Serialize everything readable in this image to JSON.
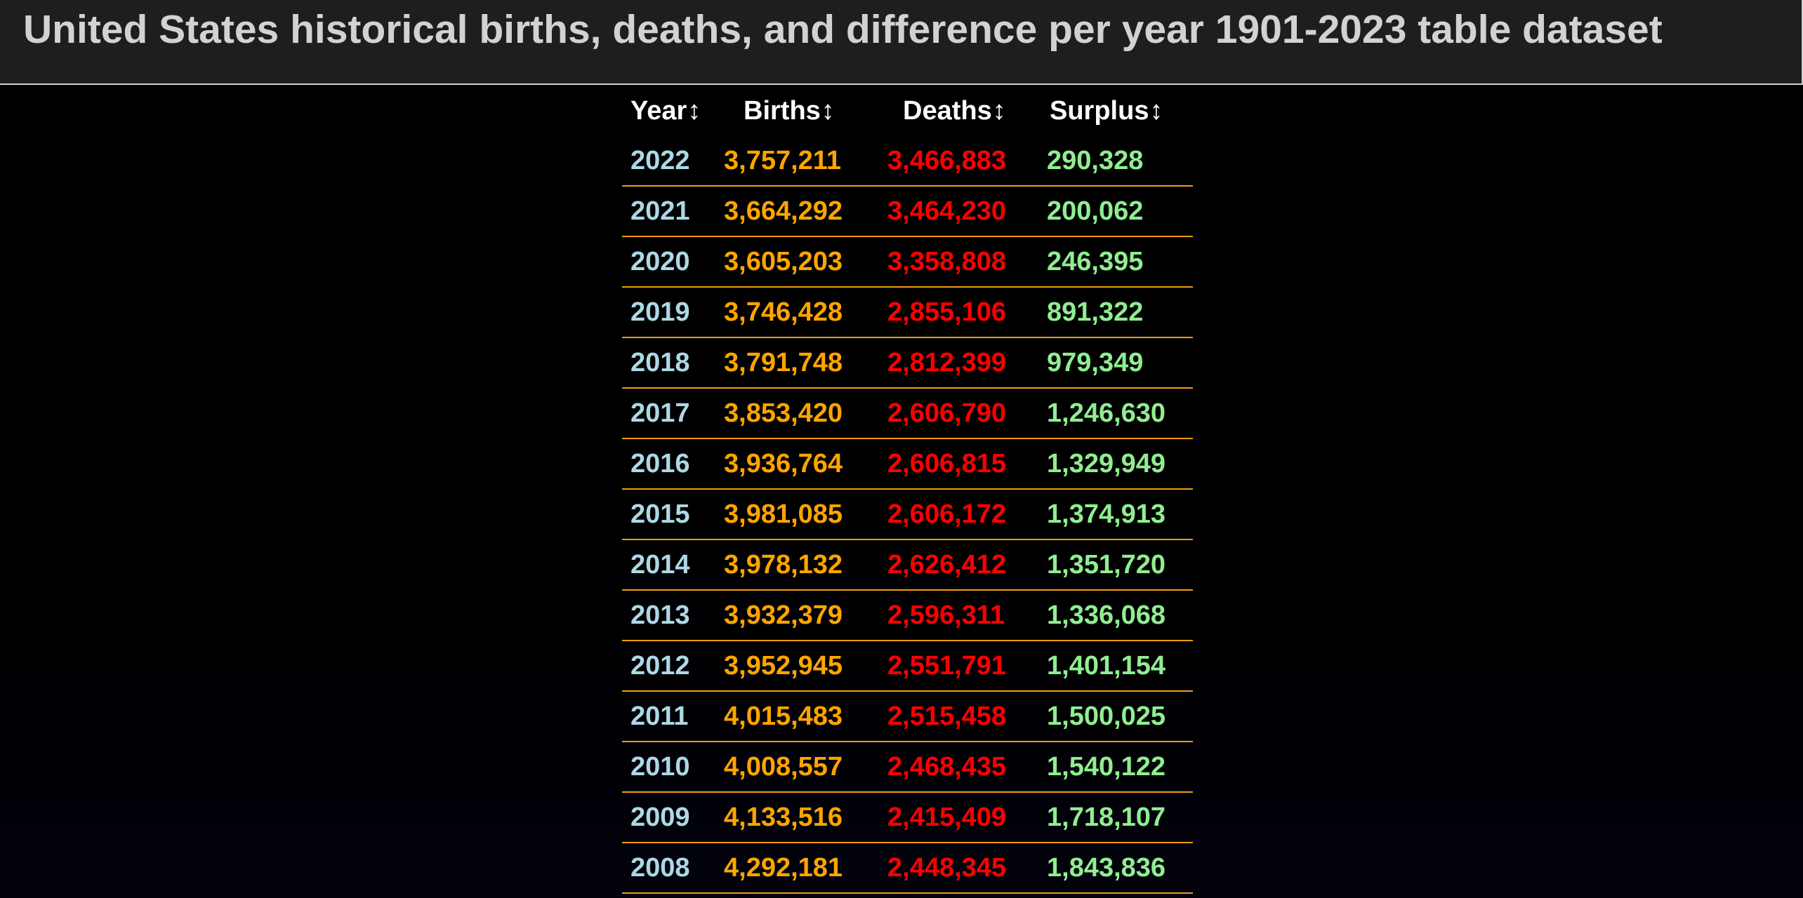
{
  "header": {
    "title": "United States historical births, deaths, and difference per year 1901-2023 table dataset"
  },
  "table": {
    "columns": [
      {
        "label": "Year",
        "sort_icon": "↕"
      },
      {
        "label": "Births",
        "sort_icon": "↕"
      },
      {
        "label": "Deaths",
        "sort_icon": "↕"
      },
      {
        "label": "Surplus",
        "sort_icon": "↕"
      }
    ],
    "rows": [
      {
        "year": "2022",
        "births": "3,757,211",
        "deaths": "3,466,883",
        "surplus": "290,328"
      },
      {
        "year": "2021",
        "births": "3,664,292",
        "deaths": "3,464,230",
        "surplus": "200,062"
      },
      {
        "year": "2020",
        "births": "3,605,203",
        "deaths": "3,358,808",
        "surplus": "246,395"
      },
      {
        "year": "2019",
        "births": "3,746,428",
        "deaths": "2,855,106",
        "surplus": "891,322"
      },
      {
        "year": "2018",
        "births": "3,791,748",
        "deaths": "2,812,399",
        "surplus": "979,349"
      },
      {
        "year": "2017",
        "births": "3,853,420",
        "deaths": "2,606,790",
        "surplus": "1,246,630"
      },
      {
        "year": "2016",
        "births": "3,936,764",
        "deaths": "2,606,815",
        "surplus": "1,329,949"
      },
      {
        "year": "2015",
        "births": "3,981,085",
        "deaths": "2,606,172",
        "surplus": "1,374,913"
      },
      {
        "year": "2014",
        "births": "3,978,132",
        "deaths": "2,626,412",
        "surplus": "1,351,720"
      },
      {
        "year": "2013",
        "births": "3,932,379",
        "deaths": "2,596,311",
        "surplus": "1,336,068"
      },
      {
        "year": "2012",
        "births": "3,952,945",
        "deaths": "2,551,791",
        "surplus": "1,401,154"
      },
      {
        "year": "2011",
        "births": "4,015,483",
        "deaths": "2,515,458",
        "surplus": "1,500,025"
      },
      {
        "year": "2010",
        "births": "4,008,557",
        "deaths": "2,468,435",
        "surplus": "1,540,122"
      },
      {
        "year": "2009",
        "births": "4,133,516",
        "deaths": "2,415,409",
        "surplus": "1,718,107"
      },
      {
        "year": "2008",
        "births": "4,292,181",
        "deaths": "2,448,345",
        "surplus": "1,843,836"
      }
    ]
  },
  "colors": {
    "year": "#add8e6",
    "births": "#ffa500",
    "deaths": "#ff0000",
    "surplus": "#90ee90",
    "row_divider": "#f39c12",
    "header_bg": "#1e1e1e",
    "title_text": "#d2d2d2"
  }
}
